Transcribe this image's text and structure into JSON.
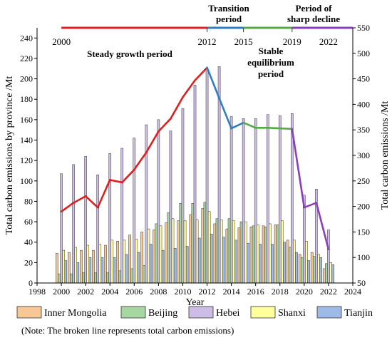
{
  "chart_data": {
    "type": "bar",
    "xlabel": "Year",
    "ylabel_left": "Total carbon emissions by province /Mt",
    "ylabel_right": "Total carbon emissions /Mt",
    "xlim": [
      1998,
      2024
    ],
    "ylim_left": [
      0,
      250
    ],
    "ylim_right": [
      50,
      550
    ],
    "x_ticks": [
      1998,
      2000,
      2002,
      2004,
      2006,
      2008,
      2010,
      2012,
      2014,
      2016,
      2018,
      2020,
      2022,
      2024
    ],
    "y_ticks_left": [
      0,
      20,
      40,
      60,
      80,
      100,
      120,
      140,
      160,
      180,
      200,
      220,
      240
    ],
    "y_ticks_right": [
      50,
      100,
      150,
      200,
      250,
      300,
      350,
      400,
      450,
      500,
      550
    ],
    "grid": false,
    "legend_position": "bottom",
    "years": [
      2000,
      2001,
      2002,
      2003,
      2004,
      2005,
      2006,
      2007,
      2008,
      2009,
      2010,
      2011,
      2012,
      2013,
      2014,
      2015,
      2016,
      2017,
      2018,
      2019,
      2020,
      2021,
      2022
    ],
    "series": [
      {
        "name": "Inner Mongolia",
        "color": "#f8c796",
        "values": [
          29,
          30,
          32,
          32,
          37,
          41,
          47,
          50,
          52,
          59,
          61,
          67,
          73,
          58,
          53,
          54,
          55,
          56,
          57,
          42,
          28,
          30,
          14
        ]
      },
      {
        "name": "Beijing",
        "color": "#a6d7a0",
        "values": [
          9,
          9,
          10,
          10,
          10,
          12,
          14,
          17,
          58,
          69,
          78,
          78,
          79,
          63,
          63,
          60,
          56,
          55,
          57,
          35,
          25,
          26,
          19
        ]
      },
      {
        "name": "Hebei",
        "color": "#cdbde6",
        "values": [
          107,
          116,
          124,
          106,
          127,
          132,
          142,
          155,
          160,
          149,
          171,
          194,
          208,
          212,
          163,
          161,
          161,
          165,
          164,
          166,
          86,
          92,
          52
        ]
      },
      {
        "name": "Shanxi",
        "color": "#ffff9e",
        "values": [
          32,
          35,
          37,
          38,
          42,
          42,
          43,
          53,
          56,
          63,
          61,
          62,
          70,
          62,
          61,
          60,
          57,
          58,
          61,
          42,
          41,
          28,
          20
        ]
      },
      {
        "name": "Tianjin",
        "color": "#9ebbe8",
        "values": [
          22,
          20,
          25,
          25,
          25,
          28,
          30,
          38,
          32,
          34,
          36,
          44,
          48,
          45,
          42,
          39,
          38,
          38,
          40,
          30,
          22,
          25,
          18
        ]
      }
    ],
    "total_line": {
      "x": [
        2000,
        2001,
        2002,
        2003,
        2004,
        2005,
        2006,
        2007,
        2008,
        2009,
        2010,
        2011,
        2012,
        2013,
        2014,
        2015,
        2016,
        2017,
        2018,
        2019,
        2020,
        2021,
        2022
      ],
      "y": [
        190,
        207,
        220,
        198,
        252,
        247,
        272,
        306,
        347,
        372,
        414,
        447,
        472,
        412,
        353,
        364,
        354,
        354,
        353,
        352,
        198,
        207,
        116
      ]
    },
    "period_segments": [
      {
        "color": "#e02020",
        "from_year": 2000,
        "to_year": 2012,
        "top_label": "2000"
      },
      {
        "color": "#2f7fc0",
        "from_year": 2012,
        "to_year": 2015,
        "top_label": "2012"
      },
      {
        "color": "#55aa44",
        "from_year": 2015,
        "to_year": 2019,
        "top_label": "2015"
      },
      {
        "color": "#8b3fb8",
        "from_year": 2019,
        "to_year": 2024,
        "top_label": "2019"
      }
    ],
    "period_year_labels": [
      "2000",
      "2012",
      "2015",
      "2019",
      "2022"
    ],
    "period_labels": {
      "steady_growth": "Steady growth period",
      "transition_1": "Transition",
      "transition_2": "period",
      "stable_1": "Stable",
      "stable_2": "equilibrium",
      "stable_3": "period",
      "decline_1": "Period of",
      "decline_2": "sharp decline"
    },
    "line_colors": {
      "growth": "#e02020",
      "transition": "#2f7fc0",
      "stable": "#55aa44",
      "decline": "#8b3fb8"
    }
  },
  "note": "(Note: The broken line represents total carbon emissions)"
}
